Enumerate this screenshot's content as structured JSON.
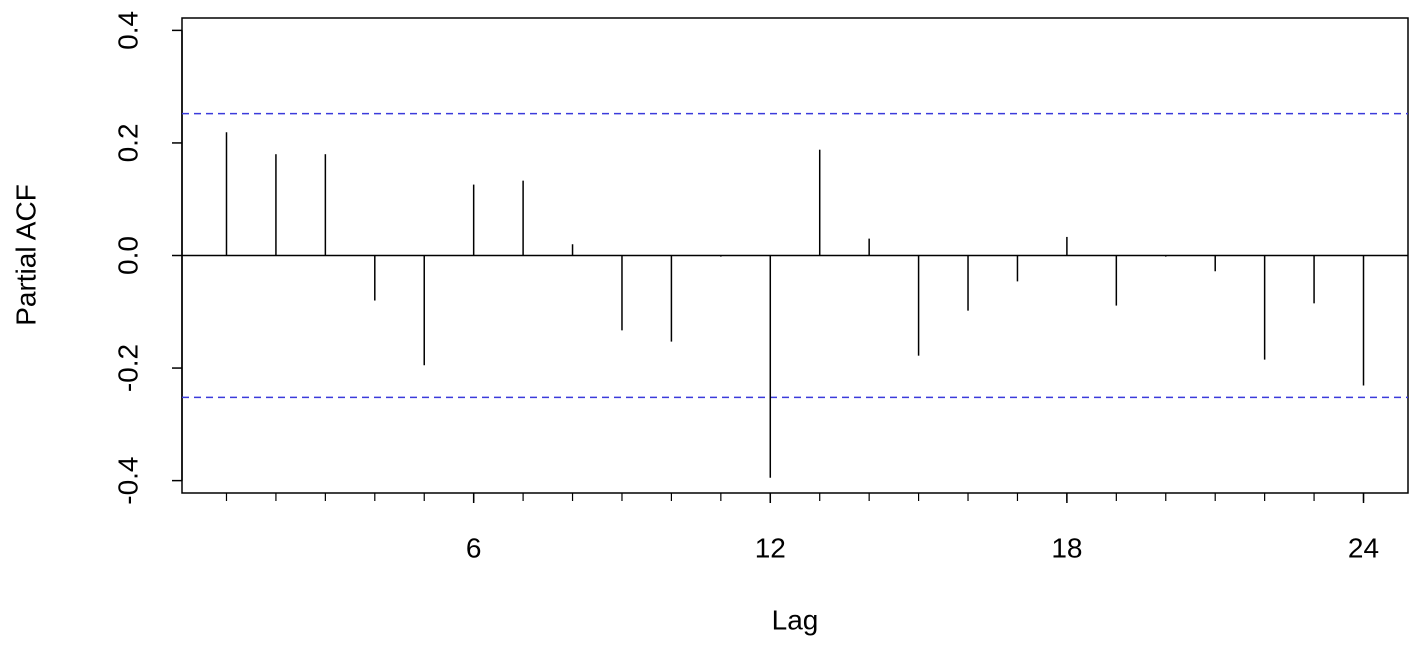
{
  "chart_data": {
    "type": "stem",
    "x_label": "Lag",
    "y_label": "Partial ACF",
    "x": [
      1,
      2,
      3,
      4,
      5,
      6,
      7,
      8,
      9,
      10,
      11,
      12,
      13,
      14,
      15,
      16,
      17,
      18,
      19,
      20,
      21,
      22,
      23,
      24
    ],
    "values": [
      0.219,
      0.18,
      0.18,
      -0.08,
      -0.195,
      0.126,
      0.133,
      0.02,
      -0.133,
      -0.153,
      -0.002,
      -0.395,
      0.188,
      0.03,
      -0.178,
      -0.098,
      -0.046,
      0.033,
      -0.089,
      -0.002,
      -0.028,
      -0.185,
      -0.085,
      -0.231
    ],
    "color": "#000000",
    "confidence_bounds": [
      -0.252,
      0.252
    ],
    "bound_color": "#3b3bdb",
    "xlim": [
      0.1,
      24.9
    ],
    "xticks": [
      6,
      12,
      18,
      24
    ],
    "ylim": [
      -0.422,
      0.422
    ],
    "yticks": [
      0.4,
      0.2,
      {
        "value": 0,
        "label": "0.0"
      },
      -0.2,
      -0.4
    ]
  }
}
